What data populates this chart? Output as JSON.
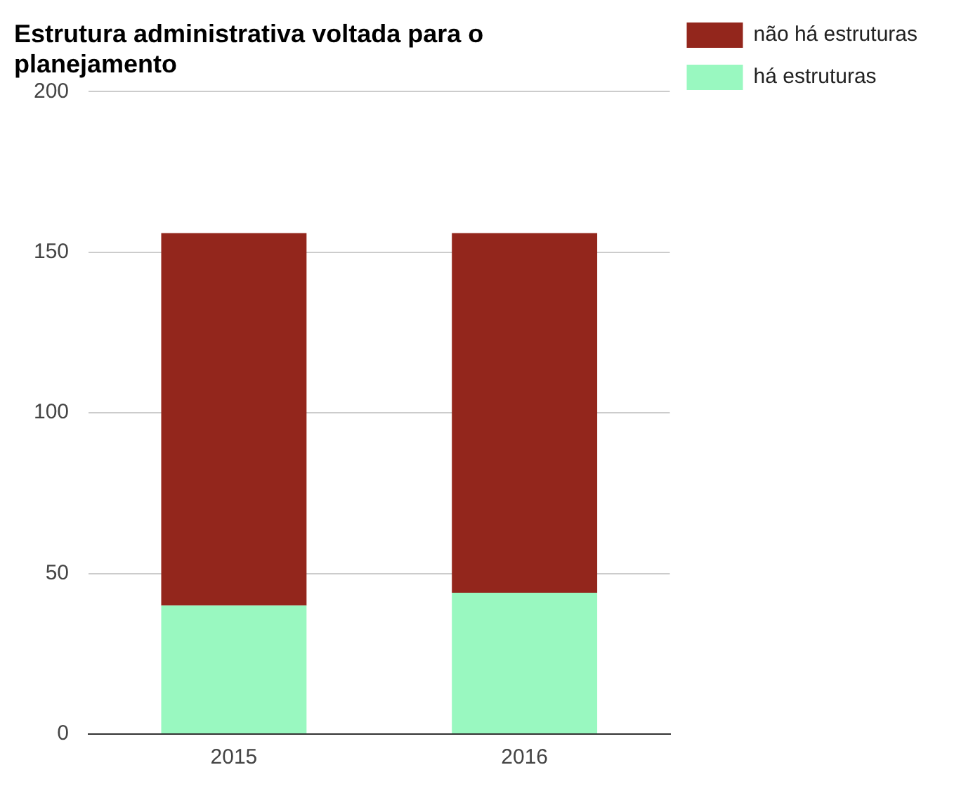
{
  "chart_data": {
    "type": "bar",
    "title": "Estrutura administrativa voltada para o planejamento",
    "categories": [
      "2015",
      "2016"
    ],
    "stacked": true,
    "series": [
      {
        "name": "há estruturas",
        "color": "#99f8c0",
        "values": [
          40,
          44
        ]
      },
      {
        "name": "não há estruturas",
        "color": "#93261c",
        "values": [
          116,
          112
        ]
      }
    ],
    "ylim": [
      0,
      200
    ],
    "yticks": [
      0,
      50,
      100,
      150,
      200
    ],
    "grid": "y",
    "legend": "top right"
  }
}
